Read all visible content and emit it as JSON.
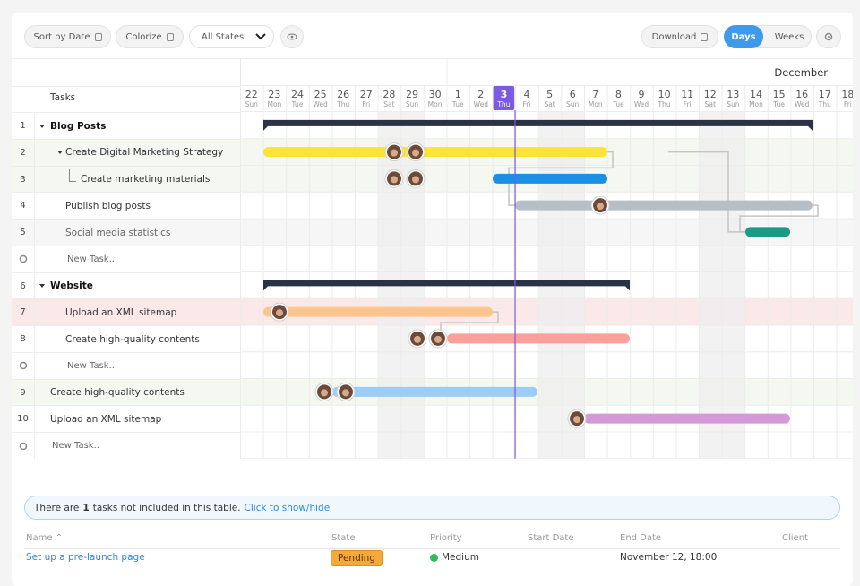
{
  "toolbar": {
    "sort": "Sort by Date",
    "colorize": "Colorize",
    "states": "All States",
    "download": "Download",
    "days": "Days",
    "weeks": "Weeks"
  },
  "timeline": {
    "month": "December",
    "days": [
      {
        "date": 22,
        "weekday": "Sun"
      },
      {
        "date": 23,
        "weekday": "Mon"
      },
      {
        "date": 24,
        "weekday": "Tue"
      },
      {
        "date": 25,
        "weekday": "Wed"
      },
      {
        "date": 26,
        "weekday": "Thu"
      },
      {
        "date": 27,
        "weekday": "Fri"
      },
      {
        "date": 28,
        "weekday": "Sat"
      },
      {
        "date": 29,
        "weekday": "Sun"
      },
      {
        "date": 30,
        "weekday": "Mon"
      },
      {
        "date": 1,
        "weekday": "Tue"
      },
      {
        "date": 2,
        "weekday": "Wed"
      },
      {
        "date": 3,
        "weekday": "Thu"
      },
      {
        "date": 4,
        "weekday": "Fri"
      },
      {
        "date": 5,
        "weekday": "Sat"
      },
      {
        "date": 6,
        "weekday": "Sun"
      },
      {
        "date": 7,
        "weekday": "Mon"
      },
      {
        "date": 8,
        "weekday": "Tue"
      },
      {
        "date": 9,
        "weekday": "Wed"
      },
      {
        "date": 10,
        "weekday": "Thu"
      },
      {
        "date": 11,
        "weekday": "Fri"
      },
      {
        "date": 12,
        "weekday": "Sat"
      },
      {
        "date": 13,
        "weekday": "Sun"
      },
      {
        "date": 14,
        "weekday": "Mon"
      },
      {
        "date": 15,
        "weekday": "Tue"
      },
      {
        "date": 16,
        "weekday": "Wed"
      },
      {
        "date": 17,
        "weekday": "Thu"
      },
      {
        "date": 18,
        "weekday": "Fri"
      }
    ]
  },
  "tasks_header": "Tasks",
  "rows": [
    {
      "number": 1,
      "label": "Blog Posts"
    },
    {
      "number": 2,
      "label": "Create Digital Marketing Strategy"
    },
    {
      "number": 3,
      "label": "Create marketing materials"
    },
    {
      "number": 4,
      "label": "Publish blog posts"
    },
    {
      "number": 5,
      "label": "Social media statistics"
    },
    {
      "label": "New Task.."
    },
    {
      "number": 6,
      "label": "Website"
    },
    {
      "number": 7,
      "label": "Upload an XML sitemap"
    },
    {
      "number": 8,
      "label": "Create high-quality contents"
    },
    {
      "label": "New Task.."
    },
    {
      "number": 9,
      "label": "Create high-quality contents"
    },
    {
      "number": 10,
      "label": "Upload an XML sitemap"
    },
    {
      "label": "New Task.."
    }
  ],
  "notice": {
    "before": "There are",
    "count": 1,
    "after": "tasks not included in this table.",
    "link": "Click to show/hide"
  },
  "table": {
    "columns": [
      "Name",
      "State",
      "Priority",
      "Start Date",
      "End Date",
      "Client"
    ],
    "rows": [
      {
        "name": "Set up a pre-launch page",
        "state": "Pending",
        "priority": "Medium",
        "end_date": "November 12, 18:00"
      }
    ]
  }
}
